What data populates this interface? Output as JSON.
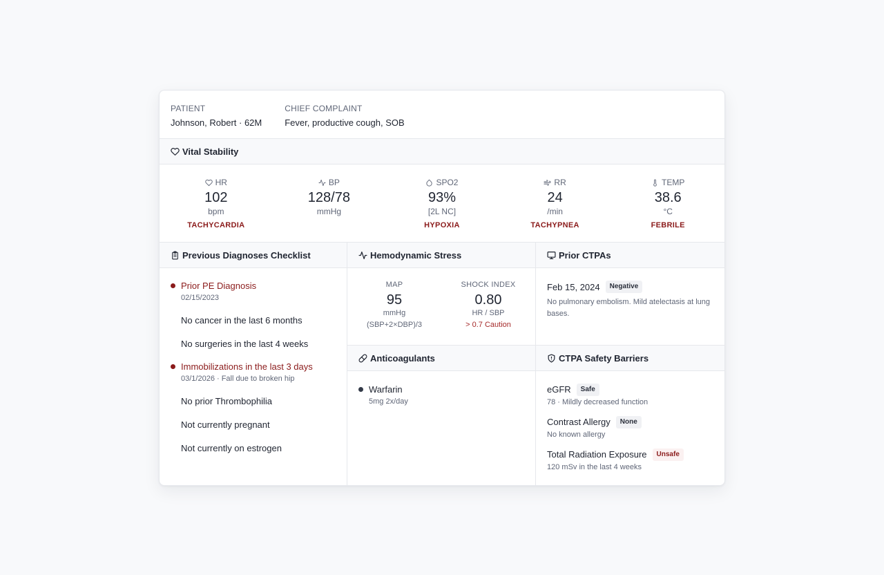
{
  "patient": {
    "label": "PATIENT",
    "value": "Johnson, Robert · 62M",
    "complaint_label": "CHIEF COMPLAINT",
    "complaint_value": "Fever, productive cough, SOB"
  },
  "vital_stability": {
    "title": "Vital Stability",
    "icon": "heart-icon",
    "vitals": [
      {
        "label": "HR",
        "icon": "heart-icon",
        "value": "102",
        "unit": "bpm",
        "flag": "TACHYCARDIA"
      },
      {
        "label": "BP",
        "icon": "activity-icon",
        "value": "128/78",
        "unit": "mmHg",
        "flag": ""
      },
      {
        "label": "SPO2",
        "icon": "droplet-icon",
        "value": "93%",
        "unit": "[2L NC]",
        "flag": "HYPOXIA"
      },
      {
        "label": "RR",
        "icon": "wind-icon",
        "value": "24",
        "unit": "/min",
        "flag": "TACHYPNEA"
      },
      {
        "label": "TEMP",
        "icon": "thermometer-icon",
        "value": "38.6",
        "unit": "°C",
        "flag": "FEBRILE"
      }
    ]
  },
  "checklist": {
    "title": "Previous Diagnoses Checklist",
    "icon": "clipboard-icon",
    "items": [
      {
        "text": "Prior PE Diagnosis",
        "sub": "02/15/2023",
        "alert": true
      },
      {
        "text": "No cancer in the last 6 months",
        "sub": "",
        "alert": false
      },
      {
        "text": "No surgeries in the last 4 weeks",
        "sub": "",
        "alert": false
      },
      {
        "text": "Immobilizations in the last 3 days",
        "sub": "03/1/2026 · Fall due to broken hip",
        "alert": true
      },
      {
        "text": "No prior Thrombophilia",
        "sub": "",
        "alert": false
      },
      {
        "text": "Not currently pregnant",
        "sub": "",
        "alert": false
      },
      {
        "text": "Not currently on estrogen",
        "sub": "",
        "alert": false
      }
    ]
  },
  "hemodynamic": {
    "title": "Hemodynamic Stress",
    "icon": "activity-icon",
    "map": {
      "label": "MAP",
      "value": "95",
      "unit": "mmHg",
      "sub": "(SBP+2×DBP)/3"
    },
    "shock": {
      "label": "SHOCK INDEX",
      "value": "0.80",
      "unit": "HR / SBP",
      "sub": "> 0.7 Caution"
    }
  },
  "anticoagulants": {
    "title": "Anticoagulants",
    "icon": "pill-icon",
    "items": [
      {
        "name": "Warfarin",
        "dose": "5mg 2x/day"
      }
    ]
  },
  "prior_ctpas": {
    "title": "Prior CTPAs",
    "icon": "monitor-icon",
    "date": "Feb 15, 2024",
    "result": "Negative",
    "description": "No pulmonary embolism. Mild atelectasis at lung bases."
  },
  "barriers": {
    "title": "CTPA Safety Barriers",
    "icon": "shield-icon",
    "items": [
      {
        "name": "eGFR",
        "badge": "Safe",
        "sub": "78 · Mildly decreased function",
        "unsafe": false
      },
      {
        "name": "Contrast Allergy",
        "badge": "None",
        "sub": "No known allergy",
        "unsafe": false
      },
      {
        "name": "Total Radiation Exposure",
        "badge": "Unsafe",
        "sub": "120 mSv in the last 4 weeks",
        "unsafe": true
      }
    ]
  },
  "colors": {
    "alert": "#8b1b1b",
    "text": "#1f2430",
    "muted": "#5f6677",
    "border": "#e6e8ec",
    "header_bg": "#f8f9fb"
  }
}
